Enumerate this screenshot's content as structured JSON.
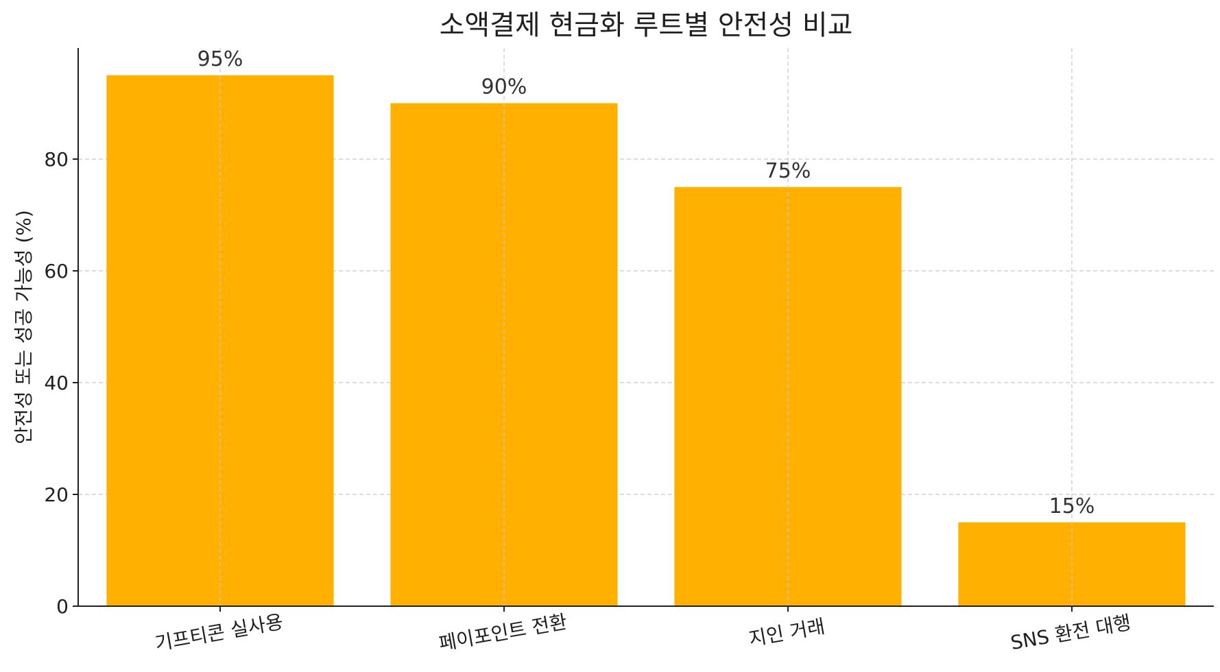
{
  "chart_data": {
    "type": "bar",
    "title": "소액결제 현금화 루트별 안전성 비교",
    "xlabel": "",
    "ylabel": "안전성 또는 성공 가능성 (%)",
    "categories": [
      "기프티콘 실사용",
      "페이포인트 전환",
      "지인 거래",
      "SNS 환전 대행"
    ],
    "values": [
      95,
      90,
      75,
      15
    ],
    "data_labels": [
      "95%",
      "90%",
      "75%",
      "15%"
    ],
    "ylim": [
      0,
      100
    ],
    "yticks": [
      0,
      20,
      40,
      60,
      80
    ],
    "ytick_labels": [
      "0",
      "20",
      "40",
      "60",
      "80"
    ],
    "grid": true,
    "bar_color": "#FFB000",
    "grid_color": "#c8c8c8",
    "axis_color": "#1f1f1f"
  }
}
